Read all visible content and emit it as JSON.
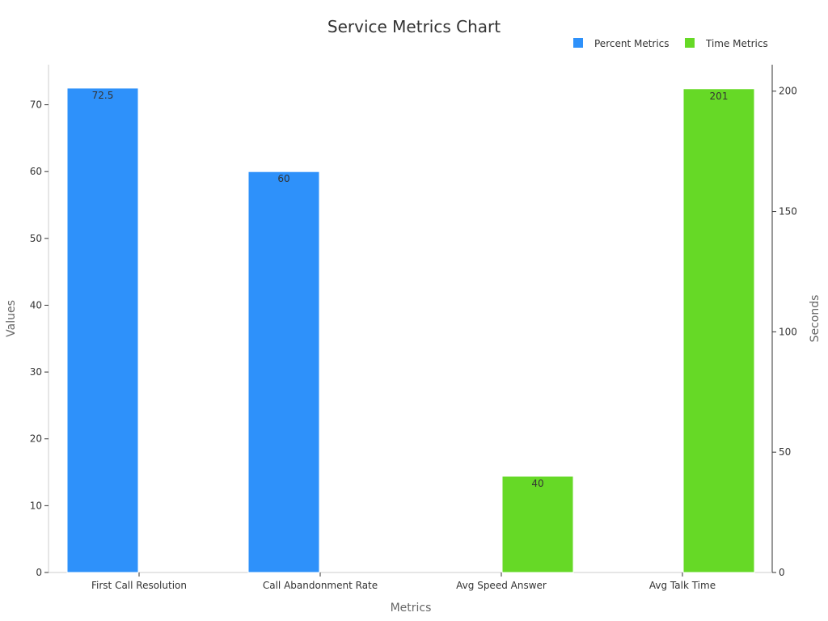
{
  "chart_data": {
    "type": "bar",
    "title": "Service Metrics Chart",
    "xlabel": "Metrics",
    "ylabel": "Values",
    "y2label": "Seconds",
    "categories": [
      "First Call Resolution",
      "Call Abandonment Rate",
      "Avg Speed Answer",
      "Avg Talk Time"
    ],
    "ylim": [
      0,
      76
    ],
    "y2lim": [
      0,
      211
    ],
    "yticks": [
      0,
      10,
      20,
      30,
      40,
      50,
      60,
      70
    ],
    "y2ticks": [
      0,
      50,
      100,
      150,
      200
    ],
    "grid": false,
    "legend_position": "top-right",
    "series": [
      {
        "name": "Percent Metrics",
        "axis": "left",
        "color": "#2e91fa",
        "values": [
          72.5,
          60,
          null,
          null
        ],
        "labels": [
          "72.5",
          "60",
          null,
          null
        ]
      },
      {
        "name": "Time Metrics",
        "axis": "right",
        "color": "#66d926",
        "values": [
          null,
          null,
          40,
          201
        ],
        "labels": [
          null,
          null,
          "40",
          "201"
        ]
      }
    ]
  }
}
